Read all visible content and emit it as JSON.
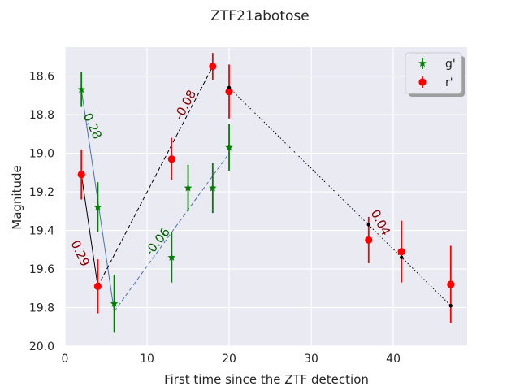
{
  "chart_data": {
    "type": "scatter",
    "title": "ZTF21abotose",
    "xlabel": "First time since the ZTF detection",
    "ylabel": "Magnitude",
    "xlim": [
      0,
      49
    ],
    "ylim": [
      20.0,
      18.45
    ],
    "y_inverted": true,
    "x_ticks": [
      0,
      10,
      20,
      30,
      40
    ],
    "y_ticks": [
      18.6,
      18.8,
      19.0,
      19.2,
      19.4,
      19.6,
      19.8,
      20.0
    ],
    "x_tick_labels": [
      "0",
      "10",
      "20",
      "30",
      "40"
    ],
    "y_tick_labels": [
      "18.6",
      "18.8",
      "19.0",
      "19.2",
      "19.4",
      "19.6",
      "19.8",
      "20.0"
    ],
    "grid": true,
    "legend_position": "top-right",
    "series": [
      {
        "name": "g'",
        "color": "#008000",
        "marker": "star",
        "points": [
          {
            "x": 2,
            "y": 18.67,
            "err": 0.09
          },
          {
            "x": 4,
            "y": 19.28,
            "err": 0.13
          },
          {
            "x": 6,
            "y": 19.78,
            "err": 0.15
          },
          {
            "x": 13,
            "y": 19.54,
            "err": 0.13
          },
          {
            "x": 15,
            "y": 19.18,
            "err": 0.12
          },
          {
            "x": 18,
            "y": 19.18,
            "err": 0.13
          },
          {
            "x": 20,
            "y": 18.97,
            "err": 0.12
          }
        ]
      },
      {
        "name": "r'",
        "color": "#ff0000",
        "marker": "circle",
        "points": [
          {
            "x": 2,
            "y": 19.11,
            "err": 0.13
          },
          {
            "x": 4,
            "y": 19.69,
            "err": 0.14
          },
          {
            "x": 13,
            "y": 19.03,
            "err": 0.11
          },
          {
            "x": 18,
            "y": 18.55,
            "err": 0.07
          },
          {
            "x": 20,
            "y": 18.68,
            "err": 0.14
          },
          {
            "x": 37,
            "y": 19.45,
            "err": 0.12
          },
          {
            "x": 41,
            "y": 19.51,
            "err": 0.16
          },
          {
            "x": 47,
            "y": 19.68,
            "err": 0.2
          }
        ]
      }
    ],
    "fit_lines": [
      {
        "x1": 2,
        "y1": 18.67,
        "x2": 6,
        "y2": 19.82,
        "color": "#4c72b0",
        "dash": "solid",
        "label": "0.28",
        "label_color": "#006400",
        "label_x": 3.3,
        "label_y": 18.86,
        "label_angle": 65
      },
      {
        "x1": 2,
        "y1": 19.11,
        "x2": 4,
        "y2": 19.69,
        "color": "#000000",
        "dash": "solid",
        "label": "0.29",
        "label_color": "#8b0000",
        "label_x": 1.8,
        "label_y": 19.52,
        "label_angle": 65
      },
      {
        "x1": 4,
        "y1": 19.69,
        "x2": 18,
        "y2": 18.55,
        "color": "#000000",
        "dash": "dashed",
        "label": "-0.08",
        "label_color": "#8b0000",
        "label_x": 14.7,
        "label_y": 18.75,
        "label_angle": -62
      },
      {
        "x1": 6,
        "y1": 19.82,
        "x2": 20,
        "y2": 19.0,
        "color": "#4c72b0",
        "dash": "dashed",
        "label": "-0.06",
        "label_color": "#006400",
        "label_x": 11.3,
        "label_y": 19.46,
        "label_angle": -52
      },
      {
        "x1": 20,
        "y1": 18.66,
        "x2": 47,
        "y2": 19.79,
        "color": "#000000",
        "dash": "dotted",
        "label": "0.04",
        "label_color": "#8b0000",
        "label_x": 38.4,
        "label_y": 19.36,
        "label_angle": 62
      }
    ],
    "anchor_points": [
      {
        "x": 20,
        "y": 18.66
      },
      {
        "x": 37,
        "y": 19.37
      },
      {
        "x": 41,
        "y": 19.54
      },
      {
        "x": 47,
        "y": 19.79
      }
    ]
  }
}
